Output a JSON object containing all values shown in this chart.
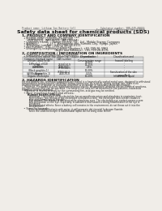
{
  "bg_color": "#f0ede8",
  "title": "Safety data sheet for chemical products (SDS)",
  "header_left": "Product name: Lithium Ion Battery Cell",
  "header_right_line1": "Substance number: SBB-049-00010",
  "header_right_line2": "Established / Revision: Dec.7.2010",
  "section1_title": "1. PRODUCT AND COMPANY IDENTIFICATION",
  "section1_lines": [
    "  • Product name: Lithium Ion Battery Cell",
    "  • Product code: Cylindrical-type cell",
    "      (INR18650L, INR18650L, INR18650A)",
    "  • Company name:    Sanyo Electric, Co., Ltd., Mobile Energy Company",
    "  • Address:          2-23-1  Kamionaka-cho, Sumoto-City, Hyogo, Japan",
    "  • Telephone number:  +81-(799)-26-4111",
    "  • Fax number:  +81-1799-26-4129",
    "  • Emergency telephone number (daytime): +81-799-26-3962",
    "                                    (Night and holidays): +81-799-26-4131"
  ],
  "section2_title": "2. COMPOSITION / INFORMATION ON INGREDIENTS",
  "section2_sub": "  • Substance or preparation: Preparation",
  "section2_sub2": "  • Information about the chemical nature of product:",
  "table_headers": [
    "Common chemical name",
    "CAS number",
    "Concentration /\nConcentration range",
    "Classification and\nhazard labeling"
  ],
  "table_rows": [
    [
      "Lithium cobalt oxide\n(LiMnxCo1-x)(O2)",
      "-",
      "30-60%",
      "-"
    ],
    [
      "Iron",
      "26168-54-9",
      "15-25%",
      "-"
    ],
    [
      "Aluminium",
      "7429-90-5",
      "2-5%",
      "-"
    ],
    [
      "Graphite\n(Black graphite-1)\n(All Black graphite-1)",
      "77783-42-5\n77783-44-2",
      "10-20%",
      "-"
    ],
    [
      "Copper",
      "7440-50-8",
      "5-15%",
      "Sensitization of the skin\ngroup No.2"
    ],
    [
      "Organic electrolyte",
      "-",
      "10-20%",
      "Inflammable liquid"
    ]
  ],
  "section3_title": "3. HAZARDS IDENTIFICATION",
  "section3_para_lines": [
    "For this battery cell, chemical substances are stored in a hermetically-sealed metal case, designed to withstand",
    "temperatures and pressures-conditions during normal use. As a result, during normal use, there is no",
    "physical danger of ignition or explosion and there is no danger of hazardous materials leakage.",
    "    However, if exposed to a fire, added mechanical shocks, decomposed, ambient electro-chemical reactions,",
    "the gas release vent can be operated. The battery cell case will be breached or fire-patterns, hazardous",
    "materials may be released.",
    "    Moreover, if heated strongly by the surrounding fire, acid gas may be emitted."
  ],
  "section3_bullet1": "  • Most important hazard and effects:",
  "section3_human": "      Human health effects:",
  "section3_human_lines": [
    "          Inhalation: The release of the electrolyte has an anesthesia action and stimulates in respiratory tract.",
    "          Skin contact: The release of the electrolyte stimulates a skin. The electrolyte skin contact causes a",
    "          sore and stimulation on the skin.",
    "          Eye contact: The release of the electrolyte stimulates eyes. The electrolyte eye contact causes a sore",
    "          and stimulation on the eye. Especially, a substance that causes a strong inflammation of the eye is",
    "          contained.",
    "          Environmental effects: Since a battery cell remains in the environment, do not throw out it into the",
    "          environment."
  ],
  "section3_bullet2": "  • Specific hazards:",
  "section3_specific": [
    "          If the electrolyte contacts with water, it will generate detrimental hydrogen fluoride.",
    "          Since the lead electrolyte is inflammable liquid, do not bring close to fire."
  ]
}
